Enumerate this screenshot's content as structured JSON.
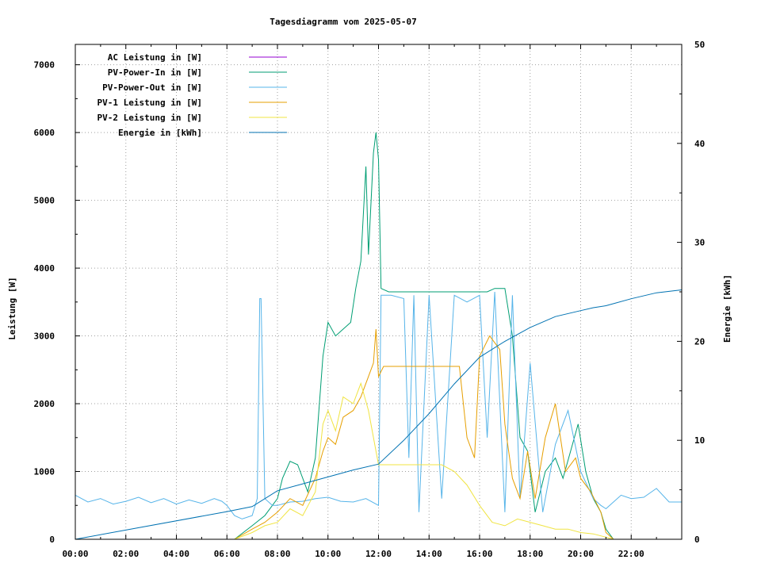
{
  "chart_data": {
    "type": "line",
    "title": "Tagesdiagramm vom 2025-05-07",
    "ylabel": "Leistung [W]",
    "y2label": "Energie [kWh]",
    "xlim": [
      0,
      24
    ],
    "ylim": [
      0,
      7300
    ],
    "y2lim": [
      0,
      50
    ],
    "x_ticks": [
      "00:00",
      "02:00",
      "04:00",
      "06:00",
      "08:00",
      "10:00",
      "12:00",
      "14:00",
      "16:00",
      "18:00",
      "20:00",
      "22:00"
    ],
    "y_ticks": [
      0,
      1000,
      2000,
      3000,
      4000,
      5000,
      6000,
      7000
    ],
    "y2_ticks": [
      0,
      10,
      20,
      30,
      40,
      50
    ],
    "grid": true,
    "legend_position": "top-left",
    "series": [
      {
        "name": "AC Leistung in [W]",
        "axis": "left",
        "color": "#9400d3",
        "x": [],
        "y": []
      },
      {
        "name": "PV-Power-In in [W]",
        "axis": "left",
        "color": "#009e73",
        "x": [
          6.3,
          7.0,
          7.5,
          8.0,
          8.2,
          8.5,
          8.8,
          9.2,
          9.5,
          9.8,
          10.0,
          10.3,
          10.6,
          10.9,
          11.1,
          11.3,
          11.5,
          11.6,
          11.8,
          11.9,
          12.0,
          12.1,
          12.4,
          13.0,
          13.5,
          14.0,
          14.5,
          15.0,
          15.5,
          15.9,
          16.3,
          16.6,
          17.0,
          17.3,
          17.6,
          17.9,
          18.2,
          18.6,
          19.0,
          19.3,
          19.6,
          19.9,
          20.2,
          20.5,
          20.8,
          21.0,
          21.3
        ],
        "y": [
          0,
          200,
          350,
          600,
          900,
          1150,
          1100,
          700,
          1200,
          2700,
          3200,
          3000,
          3100,
          3200,
          3700,
          4100,
          5500,
          4200,
          5700,
          6000,
          5600,
          3700,
          3650,
          3650,
          3650,
          3650,
          3650,
          3650,
          3650,
          3650,
          3650,
          3700,
          3700,
          3000,
          1500,
          1300,
          400,
          1000,
          1200,
          900,
          1300,
          1700,
          1000,
          600,
          400,
          150,
          0
        ]
      },
      {
        "name": "PV-Power-Out in [W]",
        "axis": "left",
        "color": "#56b4e9",
        "x": [
          0.0,
          0.5,
          1.0,
          1.5,
          2.0,
          2.5,
          3.0,
          3.5,
          4.0,
          4.5,
          5.0,
          5.5,
          5.8,
          6.0,
          6.3,
          6.6,
          7.0,
          7.2,
          7.3,
          7.35,
          7.5,
          7.8,
          8.0,
          8.5,
          9.0,
          9.5,
          10.0,
          10.5,
          11.0,
          11.5,
          12.0,
          12.1,
          12.5,
          13.0,
          13.2,
          13.4,
          13.6,
          14.0,
          14.5,
          15.0,
          15.5,
          16.0,
          16.3,
          16.6,
          17.0,
          17.3,
          17.6,
          18.0,
          18.5,
          19.0,
          19.5,
          20.0,
          20.5,
          20.8,
          21.0,
          21.3,
          21.6,
          22.0,
          22.5,
          23.0,
          23.5,
          24.0
        ],
        "y": [
          650,
          550,
          600,
          520,
          560,
          620,
          540,
          600,
          520,
          580,
          530,
          600,
          560,
          500,
          350,
          300,
          350,
          600,
          3550,
          3550,
          600,
          500,
          500,
          550,
          560,
          600,
          620,
          560,
          550,
          600,
          500,
          3600,
          3600,
          3550,
          1200,
          3600,
          400,
          3600,
          600,
          3600,
          3500,
          3600,
          1500,
          3650,
          400,
          3600,
          600,
          2600,
          400,
          1400,
          1900,
          1000,
          600,
          500,
          450,
          550,
          650,
          600,
          620,
          750,
          550,
          550
        ]
      },
      {
        "name": "PV-1 Leistung in [W]",
        "axis": "left",
        "color": "#e69f00",
        "x": [
          6.3,
          7.0,
          7.5,
          8.0,
          8.5,
          9.0,
          9.5,
          9.8,
          10.0,
          10.3,
          10.6,
          11.0,
          11.3,
          11.6,
          11.8,
          11.9,
          12.0,
          12.2,
          12.5,
          13.0,
          13.5,
          14.0,
          14.5,
          15.0,
          15.2,
          15.5,
          15.8,
          16.0,
          16.4,
          16.8,
          17.0,
          17.3,
          17.6,
          17.9,
          18.2,
          18.6,
          19.0,
          19.4,
          19.8,
          20.0,
          20.4,
          20.8,
          21.0,
          21.3
        ],
        "y": [
          0,
          150,
          250,
          400,
          600,
          500,
          900,
          1300,
          1500,
          1400,
          1800,
          1900,
          2100,
          2400,
          2600,
          3100,
          2400,
          2550,
          2550,
          2550,
          2550,
          2550,
          2550,
          2550,
          2550,
          1500,
          1200,
          2700,
          3000,
          2800,
          1700,
          900,
          600,
          1300,
          600,
          1500,
          2000,
          1000,
          1200,
          900,
          700,
          400,
          100,
          0
        ]
      },
      {
        "name": "PV-2 Leistung in [W]",
        "axis": "left",
        "color": "#f0e442",
        "x": [
          6.3,
          7.0,
          7.5,
          8.0,
          8.5,
          9.0,
          9.5,
          9.8,
          10.0,
          10.3,
          10.6,
          11.0,
          11.3,
          11.6,
          11.9,
          12.0,
          12.3,
          13.0,
          13.5,
          14.0,
          14.5,
          15.0,
          15.5,
          16.0,
          16.5,
          17.0,
          17.5,
          18.0,
          18.5,
          19.0,
          19.5,
          20.0,
          20.5,
          21.0,
          21.3
        ],
        "y": [
          0,
          100,
          200,
          250,
          450,
          350,
          700,
          1700,
          1900,
          1600,
          2100,
          2000,
          2300,
          1900,
          1300,
          1100,
          1100,
          1100,
          1100,
          1100,
          1100,
          1000,
          800,
          500,
          250,
          200,
          300,
          250,
          200,
          150,
          150,
          100,
          80,
          30,
          0
        ]
      },
      {
        "name": "Energie in [kWh]",
        "axis": "right",
        "color": "#0072b2",
        "x": [
          0.0,
          6.0,
          7.0,
          8.0,
          9.0,
          10.0,
          11.0,
          12.0,
          13.0,
          14.0,
          15.0,
          16.0,
          17.0,
          18.0,
          19.0,
          20.0,
          20.5,
          21.0,
          22.0,
          23.0,
          24.0
        ],
        "y": [
          0.0,
          2.8,
          3.3,
          4.9,
          5.6,
          6.3,
          7.0,
          7.6,
          10.0,
          12.7,
          15.7,
          18.4,
          20.0,
          21.4,
          22.5,
          23.1,
          23.4,
          23.6,
          24.3,
          24.9,
          25.2
        ]
      }
    ]
  }
}
